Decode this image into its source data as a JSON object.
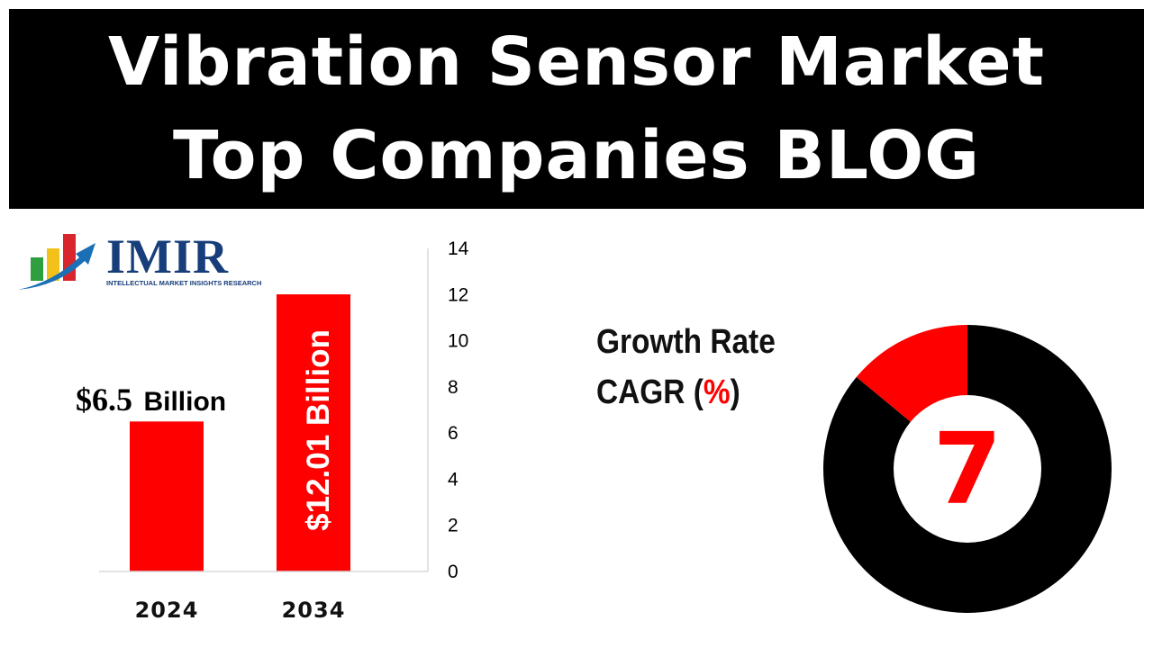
{
  "header": {
    "title_line1": "Vibration Sensor Market",
    "title_line2": "Top Companies BLOG"
  },
  "logo": {
    "name": "IMIR",
    "tagline": "INTELLECTUAL MARKET INSIGHTS RESEARCH"
  },
  "growth": {
    "line1": "Growth Rate",
    "line2_prefix": "CAGR (",
    "line2_symbol": "%",
    "line2_suffix": ")"
  },
  "colors": {
    "bar": "#ff0000",
    "donut_dark": "#000000",
    "donut_accent": "#ff0000",
    "logo_blue": "#173d7a"
  },
  "chart_data": [
    {
      "type": "bar",
      "categories": [
        "2024",
        "2034"
      ],
      "values": [
        6.5,
        12.01
      ],
      "data_labels": [
        {
          "amount": "$6.5",
          "unit": "Billion"
        },
        {
          "text": "$12.01 Billion"
        }
      ],
      "y_ticks": [
        "0",
        "2",
        "4",
        "6",
        "8",
        "10",
        "12",
        "14"
      ],
      "ylim": [
        0,
        14
      ],
      "y_axis_side": "right",
      "grid": false,
      "title": "",
      "xlabel": "",
      "ylabel": ""
    },
    {
      "type": "pie",
      "variant": "donut",
      "value": 7,
      "center_label": "7",
      "slices": [
        {
          "value": 14,
          "color": "#ff0000"
        },
        {
          "value": 86,
          "color": "#000000"
        }
      ]
    }
  ]
}
